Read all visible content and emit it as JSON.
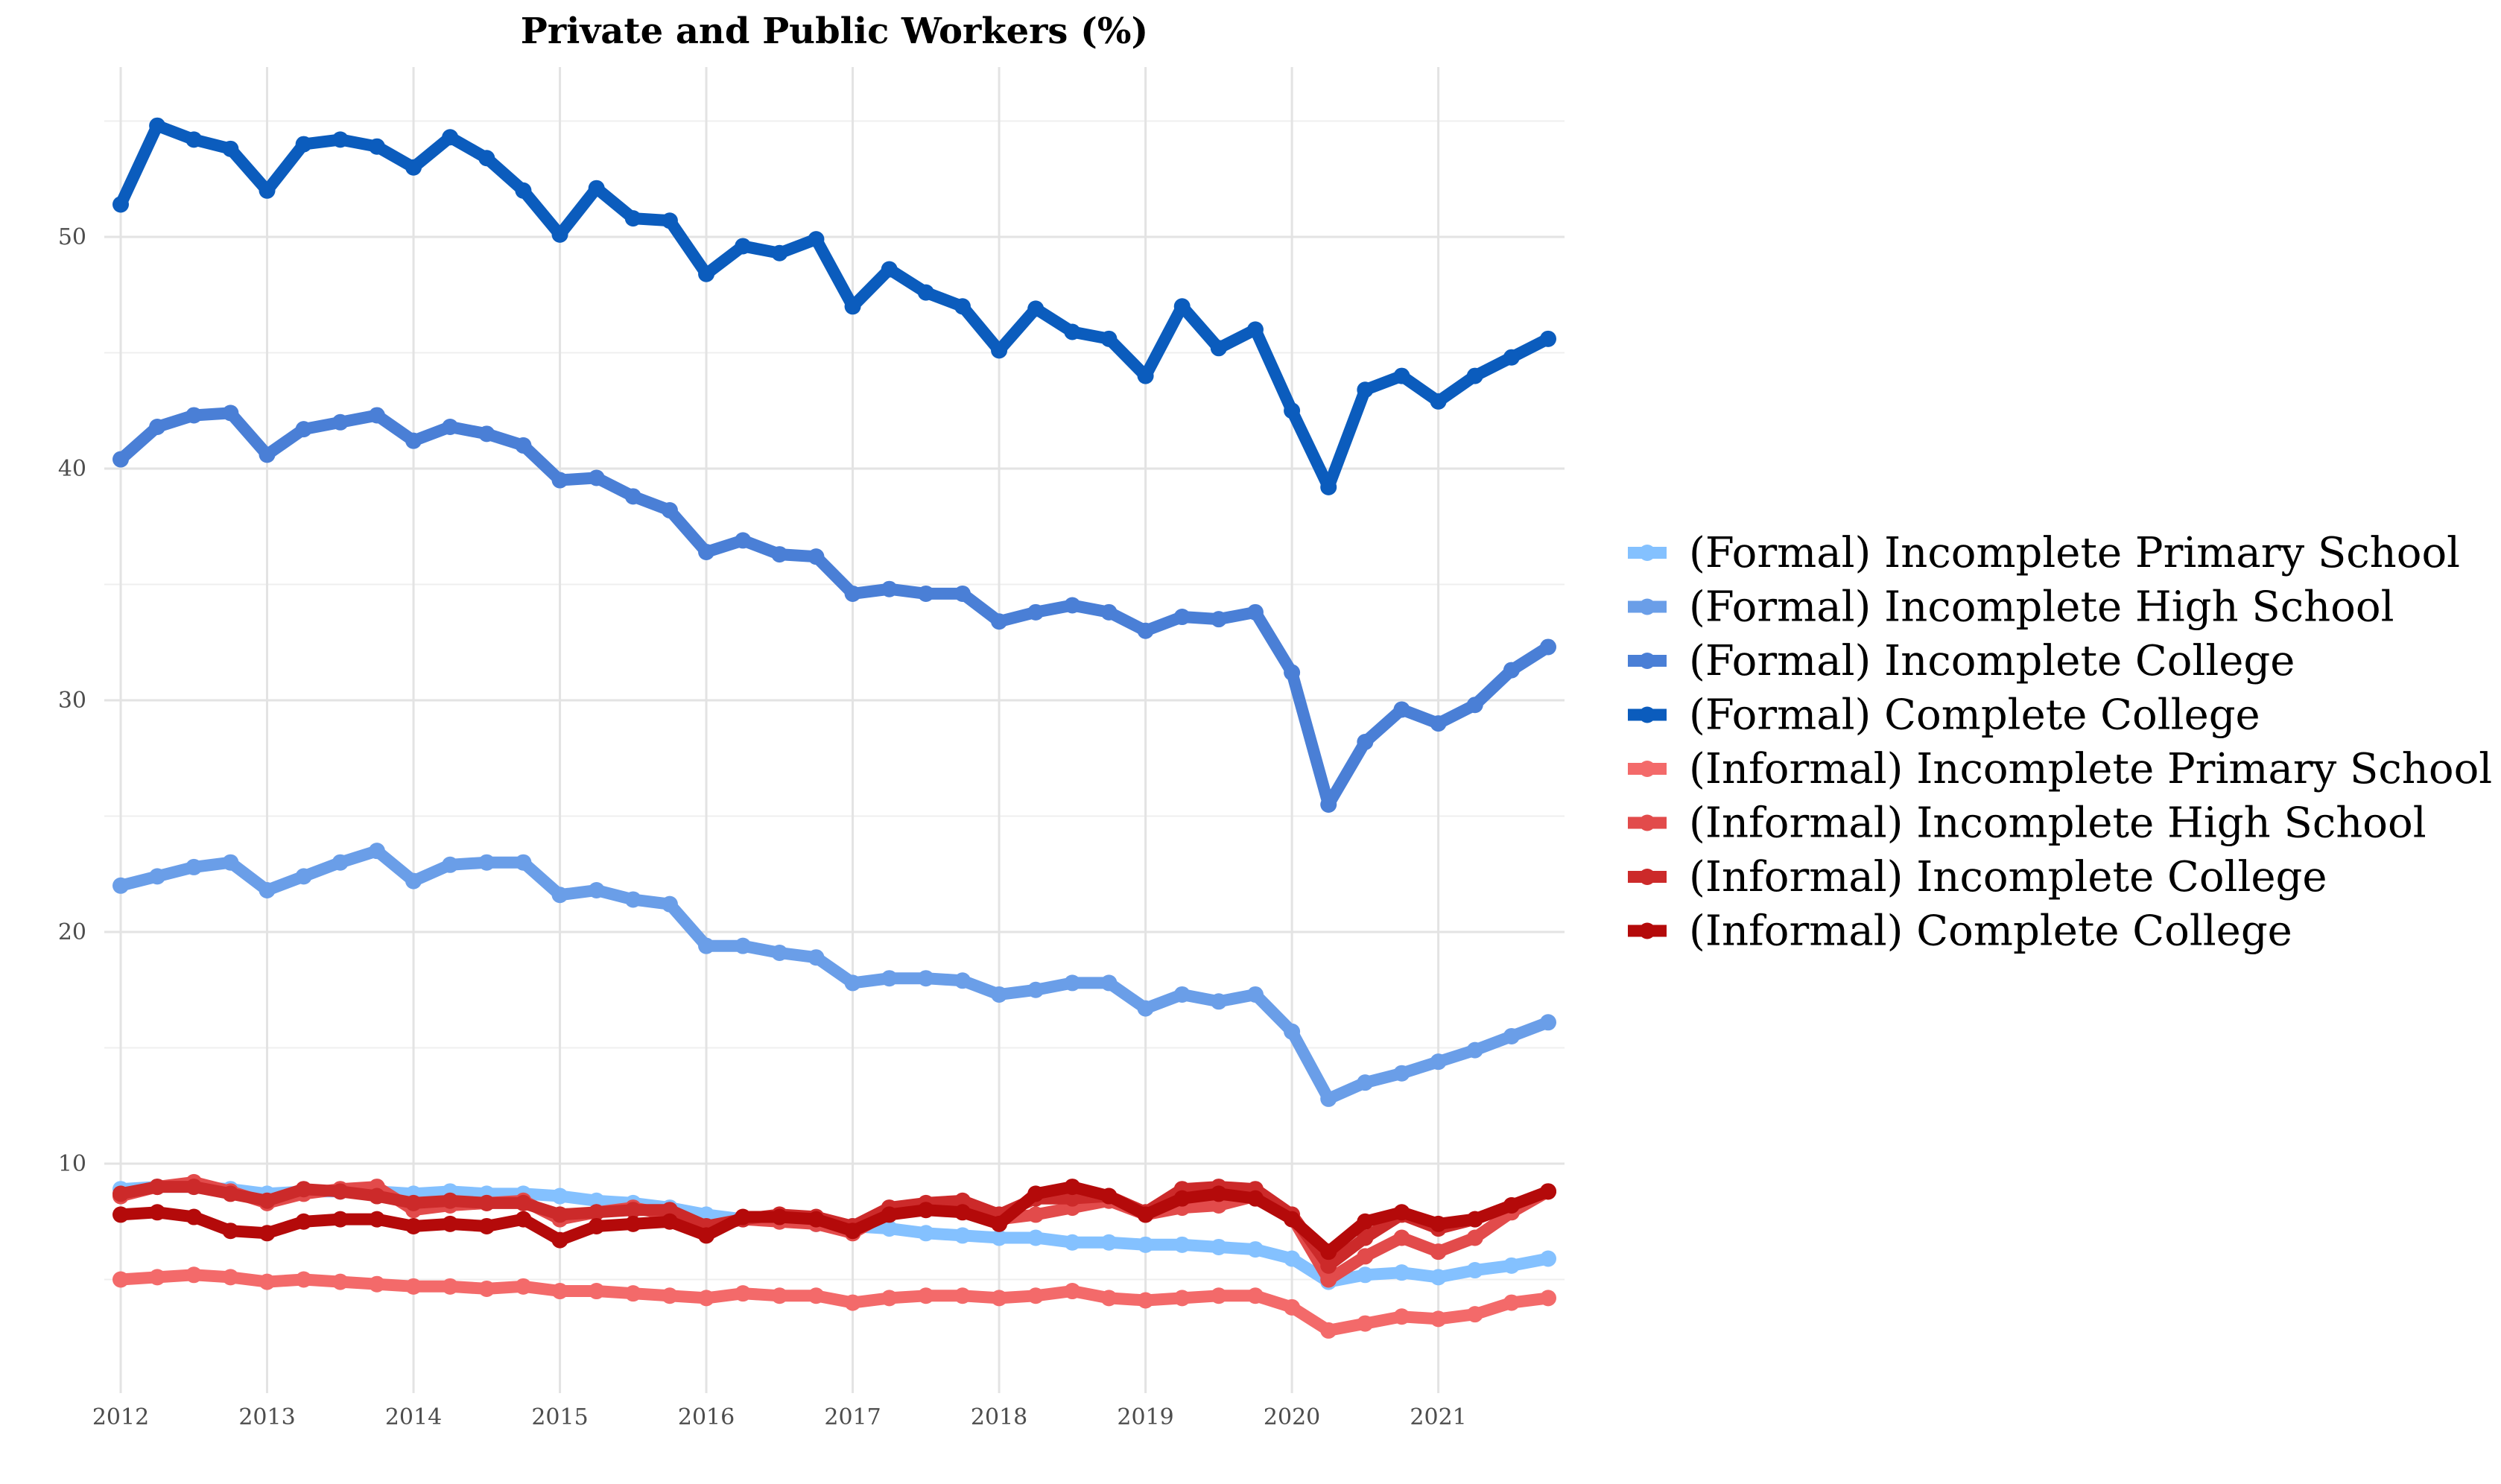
{
  "chart_data": {
    "type": "line",
    "title": "Private and Public Workers (%)",
    "xlabel": "",
    "ylabel": "",
    "xlim": [
      2012,
      2021.75
    ],
    "ylim": [
      0,
      55
    ],
    "x_ticks": [
      2012,
      2013,
      2014,
      2015,
      2016,
      2017,
      2018,
      2019,
      2020,
      2021
    ],
    "y_ticks": [
      10,
      20,
      30,
      40,
      50
    ],
    "grid": true,
    "legend_position": "right",
    "x": [
      2012.0,
      2012.25,
      2012.5,
      2012.75,
      2013.0,
      2013.25,
      2013.5,
      2013.75,
      2014.0,
      2014.25,
      2014.5,
      2014.75,
      2015.0,
      2015.25,
      2015.5,
      2015.75,
      2016.0,
      2016.25,
      2016.5,
      2016.75,
      2017.0,
      2017.25,
      2017.5,
      2017.75,
      2018.0,
      2018.25,
      2018.5,
      2018.75,
      2019.0,
      2019.25,
      2019.5,
      2019.75,
      2020.0,
      2020.25,
      2020.5,
      2020.75,
      2021.0,
      2021.25,
      2021.5,
      2021.75
    ],
    "series": [
      {
        "name": "(Formal) Incomplete Primary School",
        "color": "#84c1ff",
        "values": [
          8.9,
          9.0,
          9.0,
          8.9,
          8.7,
          8.8,
          8.8,
          8.8,
          8.7,
          8.8,
          8.7,
          8.7,
          8.6,
          8.4,
          8.3,
          8.1,
          7.8,
          7.6,
          7.6,
          7.4,
          7.3,
          7.2,
          7.0,
          6.9,
          6.8,
          6.8,
          6.6,
          6.6,
          6.5,
          6.5,
          6.4,
          6.3,
          5.9,
          4.9,
          5.2,
          5.3,
          5.1,
          5.4,
          5.6,
          5.9
        ]
      },
      {
        "name": "(Formal) Incomplete High School",
        "color": "#6a9ee8",
        "values": [
          22.0,
          22.4,
          22.8,
          23.0,
          21.8,
          22.4,
          23.0,
          23.5,
          22.2,
          22.9,
          23.0,
          23.0,
          21.6,
          21.8,
          21.4,
          21.2,
          19.4,
          19.4,
          19.1,
          18.9,
          17.8,
          18.0,
          18.0,
          17.9,
          17.3,
          17.5,
          17.8,
          17.8,
          16.7,
          17.3,
          17.0,
          17.3,
          15.7,
          12.8,
          13.5,
          13.9,
          14.4,
          14.9,
          15.5,
          16.1
        ]
      },
      {
        "name": "(Formal) Incomplete College",
        "color": "#4a7fd6",
        "values": [
          40.4,
          41.8,
          42.3,
          42.4,
          40.6,
          41.7,
          42.0,
          42.3,
          41.2,
          41.8,
          41.5,
          41.0,
          39.5,
          39.6,
          38.8,
          38.2,
          36.4,
          36.9,
          36.3,
          36.2,
          34.6,
          34.8,
          34.6,
          34.6,
          33.4,
          33.8,
          34.1,
          33.8,
          33.0,
          33.6,
          33.5,
          33.8,
          31.2,
          25.5,
          28.2,
          29.6,
          29.0,
          29.8,
          31.3,
          32.3
        ]
      },
      {
        "name": "(Formal) Complete College",
        "color": "#0b5cbd",
        "values": [
          51.4,
          54.8,
          54.2,
          53.8,
          52.0,
          54.0,
          54.2,
          53.9,
          53.0,
          54.3,
          53.4,
          52.0,
          50.1,
          52.1,
          50.8,
          50.7,
          48.4,
          49.6,
          49.3,
          49.9,
          47.0,
          48.6,
          47.6,
          47.0,
          45.1,
          46.9,
          45.9,
          45.6,
          44.0,
          47.0,
          45.2,
          46.0,
          42.5,
          39.2,
          43.4,
          44.0,
          42.9,
          44.0,
          44.8,
          45.6
        ]
      },
      {
        "name": "(Informal) Incomplete Primary School",
        "color": "#f36a6a",
        "values": [
          5.0,
          5.1,
          5.2,
          5.1,
          4.9,
          5.0,
          4.9,
          4.8,
          4.7,
          4.7,
          4.6,
          4.7,
          4.5,
          4.5,
          4.4,
          4.3,
          4.2,
          4.4,
          4.3,
          4.3,
          4.0,
          4.2,
          4.3,
          4.3,
          4.2,
          4.3,
          4.5,
          4.2,
          4.1,
          4.2,
          4.3,
          4.3,
          3.8,
          2.8,
          3.1,
          3.4,
          3.3,
          3.5,
          4.0,
          4.2
        ]
      },
      {
        "name": "(Informal) Incomplete High School",
        "color": "#e24b4b",
        "values": [
          8.6,
          9.0,
          9.2,
          8.8,
          8.3,
          8.7,
          8.9,
          9.0,
          8.0,
          8.2,
          8.3,
          8.4,
          7.6,
          7.9,
          8.1,
          7.8,
          7.2,
          7.6,
          7.5,
          7.4,
          7.0,
          7.9,
          8.2,
          8.1,
          7.6,
          7.8,
          8.1,
          8.4,
          7.8,
          8.1,
          8.2,
          8.6,
          7.7,
          5.0,
          6.0,
          6.8,
          6.2,
          6.8,
          7.9,
          8.8
        ]
      },
      {
        "name": "(Informal) Incomplete College",
        "color": "#cc2a2a",
        "values": [
          8.7,
          9.0,
          9.0,
          8.7,
          8.4,
          8.9,
          8.8,
          8.6,
          8.3,
          8.4,
          8.3,
          8.3,
          7.8,
          7.9,
          8.0,
          8.0,
          7.3,
          7.6,
          7.8,
          7.7,
          7.3,
          8.1,
          8.3,
          8.4,
          7.8,
          8.5,
          8.5,
          8.6,
          7.9,
          8.9,
          9.0,
          8.9,
          7.8,
          5.6,
          6.8,
          7.8,
          7.2,
          7.6,
          8.2,
          8.8
        ]
      },
      {
        "name": "(Informal) Complete College",
        "color": "#b40a0a",
        "values": [
          7.8,
          7.9,
          7.7,
          7.1,
          7.0,
          7.5,
          7.6,
          7.6,
          7.3,
          7.4,
          7.3,
          7.6,
          6.7,
          7.3,
          7.4,
          7.5,
          6.9,
          7.7,
          7.7,
          7.6,
          7.1,
          7.8,
          8.0,
          7.9,
          7.4,
          8.7,
          9.0,
          8.6,
          7.8,
          8.5,
          8.7,
          8.5,
          7.6,
          6.2,
          7.5,
          7.9,
          7.4,
          7.6,
          8.2,
          8.8
        ]
      }
    ]
  }
}
